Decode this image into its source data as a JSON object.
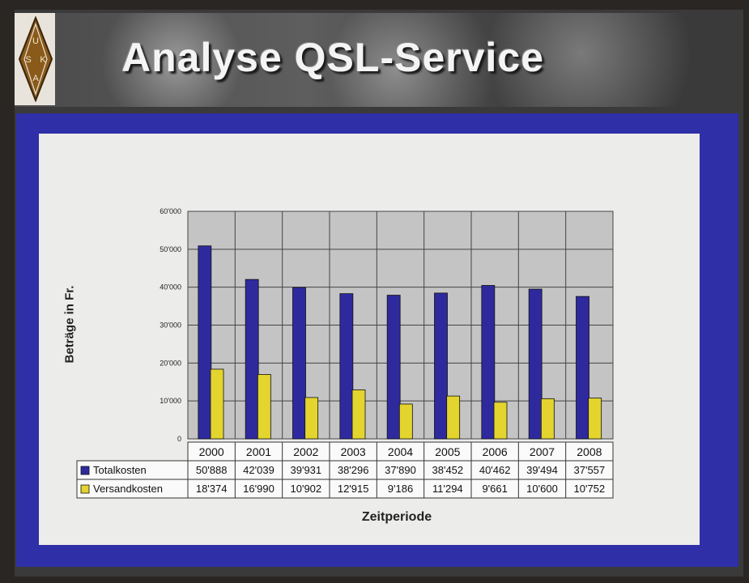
{
  "slide": {
    "title": "Analyse QSL-Service",
    "logo_letters": [
      "U",
      "S",
      "K",
      "A"
    ]
  },
  "chart_data": {
    "type": "bar",
    "title": "",
    "xlabel": "Zeitperiode",
    "ylabel": "Beträge in Fr.",
    "ylim": [
      0,
      60000
    ],
    "yticks": [
      0,
      10000,
      20000,
      30000,
      40000,
      50000,
      60000
    ],
    "ytick_labels": [
      "0",
      "10'000",
      "20'000",
      "30'000",
      "40'000",
      "50'000",
      "60'000"
    ],
    "grid": true,
    "legend": "table-below",
    "categories": [
      "2000",
      "2001",
      "2002",
      "2003",
      "2004",
      "2005",
      "2006",
      "2007",
      "2008"
    ],
    "series": [
      {
        "name": "Totalkosten",
        "color": "#2e2a9e",
        "values": [
          50888,
          42039,
          39931,
          38296,
          37890,
          38452,
          40462,
          39494,
          37557
        ],
        "labels": [
          "50'888",
          "42'039",
          "39'931",
          "38'296",
          "37'890",
          "38'452",
          "40'462",
          "39'494",
          "37'557"
        ]
      },
      {
        "name": "Versandkosten",
        "color": "#e3d42e",
        "values": [
          18374,
          16990,
          10902,
          12915,
          9186,
          11294,
          9661,
          10600,
          10752
        ],
        "labels": [
          "18'374",
          "16'990",
          "10'902",
          "12'915",
          "9'186",
          "11'294",
          "9'661",
          "10'600",
          "10'752"
        ]
      }
    ]
  }
}
